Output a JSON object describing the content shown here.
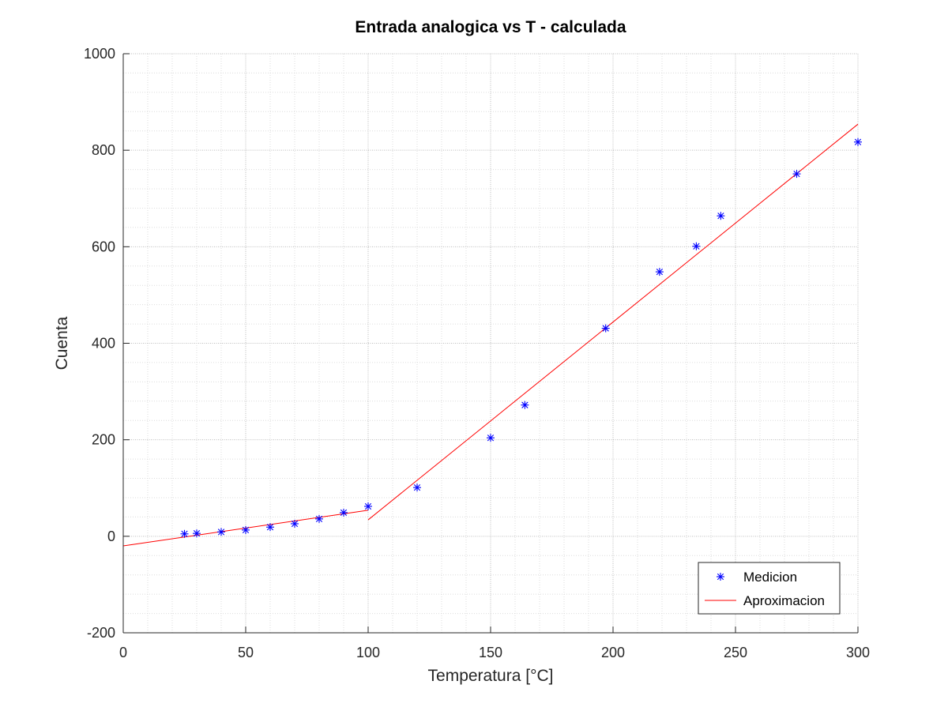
{
  "chart_data": {
    "type": "line",
    "title": "Entrada analogica vs T - calculada",
    "xlabel": "Temperatura [°C]",
    "ylabel": "Cuenta",
    "xlim": [
      0,
      300
    ],
    "ylim": [
      -200,
      1000
    ],
    "xticks": [
      0,
      50,
      100,
      150,
      200,
      250,
      300
    ],
    "yticks": [
      -200,
      0,
      200,
      400,
      600,
      800,
      1000
    ],
    "xtick_labels": [
      "0",
      "50",
      "100",
      "150",
      "200",
      "250",
      "300"
    ],
    "ytick_labels": [
      "-200",
      "0",
      "200",
      "400",
      "600",
      "800",
      "1000"
    ],
    "grid": true,
    "minor_grid": true,
    "legend_position": "bottom-right",
    "series": [
      {
        "name": "Medicion",
        "kind": "scatter",
        "marker": "asterisk",
        "color": "#0000ff",
        "x": [
          25,
          30,
          40,
          50,
          60,
          70,
          80,
          90,
          100,
          120,
          150,
          164,
          197,
          219,
          234,
          244,
          275,
          300
        ],
        "y": [
          5,
          6,
          9,
          13,
          19,
          26,
          36,
          49,
          62,
          101,
          204,
          272,
          431,
          548,
          601,
          664,
          751,
          817
        ]
      },
      {
        "name": "Aproximacion",
        "kind": "line",
        "color": "#ff0000",
        "segments": [
          {
            "x": [
              0,
              100
            ],
            "y": [
              -20,
              54
            ]
          },
          {
            "x": [
              100,
              300
            ],
            "y": [
              34,
              854
            ]
          }
        ]
      }
    ]
  }
}
